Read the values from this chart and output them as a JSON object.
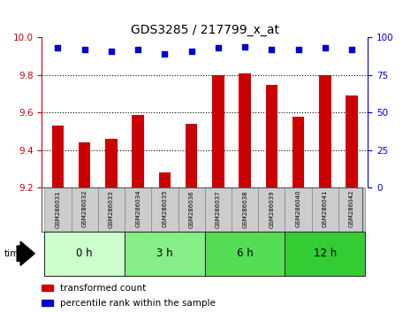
{
  "title": "GDS3285 / 217799_x_at",
  "samples": [
    "GSM286031",
    "GSM286032",
    "GSM286033",
    "GSM286034",
    "GSM286035",
    "GSM286036",
    "GSM286037",
    "GSM286038",
    "GSM286039",
    "GSM286040",
    "GSM286041",
    "GSM286042"
  ],
  "bar_values": [
    9.53,
    9.44,
    9.46,
    9.59,
    9.28,
    9.54,
    9.8,
    9.81,
    9.75,
    9.58,
    9.8,
    9.69
  ],
  "percentile_values": [
    93,
    92,
    91,
    92,
    89,
    91,
    93,
    94,
    92,
    92,
    93,
    92
  ],
  "bar_color": "#cc0000",
  "percentile_color": "#0000cc",
  "ylim_left": [
    9.2,
    10.0
  ],
  "ylim_right": [
    0,
    100
  ],
  "yticks_left": [
    9.2,
    9.4,
    9.6,
    9.8,
    10.0
  ],
  "yticks_right": [
    0,
    25,
    50,
    75,
    100
  ],
  "groups": [
    {
      "label": "0 h",
      "start": 0,
      "end": 3,
      "color": "#ccffcc"
    },
    {
      "label": "3 h",
      "start": 3,
      "end": 6,
      "color": "#88ee88"
    },
    {
      "label": "6 h",
      "start": 6,
      "end": 9,
      "color": "#55dd55"
    },
    {
      "label": "12 h",
      "start": 9,
      "end": 12,
      "color": "#33cc33"
    }
  ],
  "bar_width": 0.45,
  "background_color": "#ffffff",
  "sample_bg_color": "#cccccc",
  "grid_dotted_values": [
    9.4,
    9.6,
    9.8
  ]
}
